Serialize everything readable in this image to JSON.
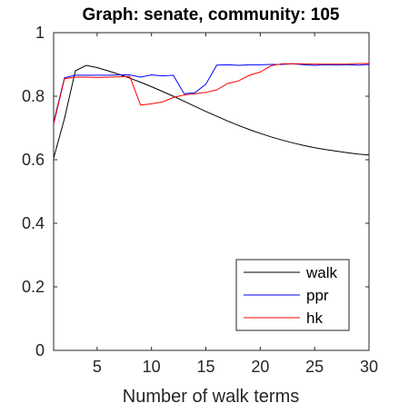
{
  "chart_data": {
    "type": "line",
    "title": "Graph: senate, community: 105",
    "xlabel": "Number of walk terms",
    "ylabel": "",
    "xlim": [
      1,
      30
    ],
    "ylim": [
      0,
      1
    ],
    "xticks": [
      5,
      10,
      15,
      20,
      25,
      30
    ],
    "yticks": [
      0,
      0.2,
      0.4,
      0.6,
      0.8,
      1
    ],
    "xtick_labels": [
      "5",
      "10",
      "15",
      "20",
      "25",
      "30"
    ],
    "ytick_labels": [
      "0",
      "0.2",
      "0.4",
      "0.6",
      "0.8",
      "1"
    ],
    "grid": false,
    "legend_position": "bottom-right",
    "x": [
      1,
      2,
      3,
      4,
      5,
      6,
      7,
      8,
      9,
      10,
      11,
      12,
      13,
      14,
      15,
      16,
      17,
      18,
      19,
      20,
      21,
      22,
      23,
      24,
      25,
      26,
      27,
      28,
      29,
      30
    ],
    "series": [
      {
        "name": "walk",
        "color": "#000000",
        "values": [
          0.605,
          0.73,
          0.88,
          0.897,
          0.89,
          0.88,
          0.869,
          0.857,
          0.844,
          0.83,
          0.815,
          0.8,
          0.784,
          0.768,
          0.752,
          0.737,
          0.722,
          0.708,
          0.695,
          0.683,
          0.672,
          0.662,
          0.653,
          0.645,
          0.638,
          0.632,
          0.627,
          0.622,
          0.618,
          0.615
        ]
      },
      {
        "name": "ppr",
        "color": "#0000ff",
        "values": [
          0.718,
          0.858,
          0.866,
          0.866,
          0.866,
          0.866,
          0.867,
          0.867,
          0.86,
          0.867,
          0.864,
          0.866,
          0.808,
          0.811,
          0.838,
          0.898,
          0.899,
          0.897,
          0.899,
          0.899,
          0.9,
          0.9,
          0.902,
          0.899,
          0.897,
          0.899,
          0.898,
          0.899,
          0.898,
          0.9
        ]
      },
      {
        "name": "hk",
        "color": "#ff0000",
        "values": [
          0.712,
          0.855,
          0.86,
          0.86,
          0.859,
          0.86,
          0.861,
          0.862,
          0.772,
          0.776,
          0.782,
          0.796,
          0.804,
          0.808,
          0.812,
          0.82,
          0.84,
          0.848,
          0.866,
          0.876,
          0.896,
          0.902,
          0.902,
          0.902,
          0.901,
          0.901,
          0.901,
          0.901,
          0.903,
          0.903
        ]
      }
    ]
  }
}
